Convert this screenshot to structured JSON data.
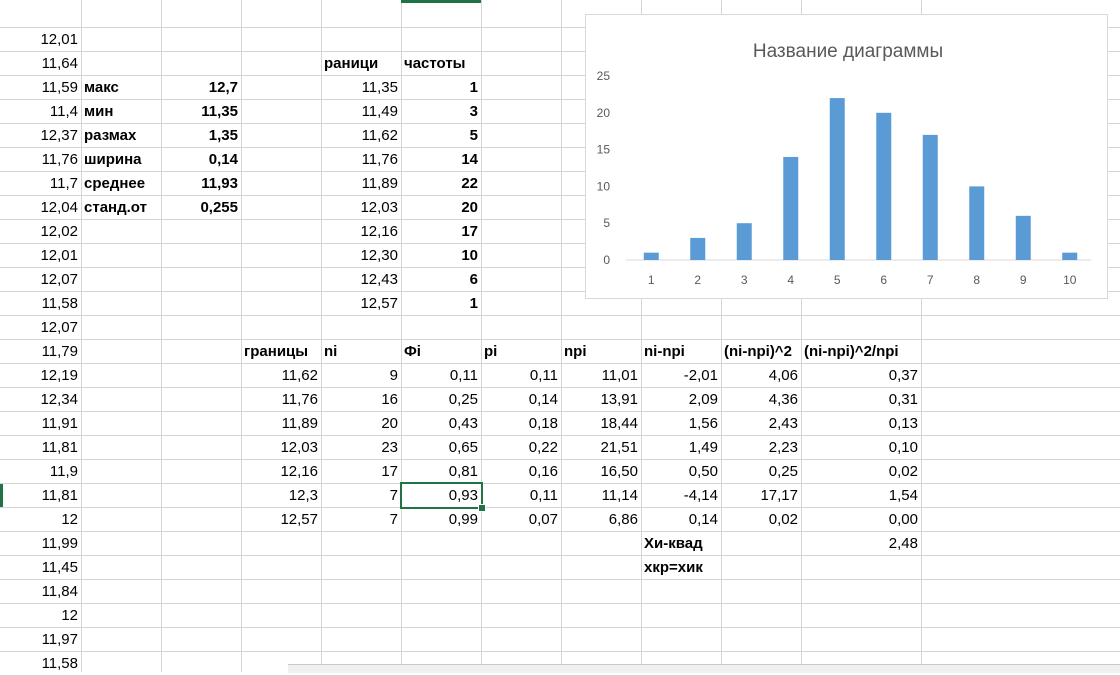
{
  "column_a": [
    "12,01",
    "11,64",
    "11,59",
    "11,4",
    "12,37",
    "11,76",
    "11,7",
    "12,04",
    "12,02",
    "12,01",
    "12,07",
    "11,58",
    "12,07",
    "11,79",
    "12,19",
    "12,34",
    "11,91",
    "11,81",
    "11,9",
    "11,81",
    "12",
    "11,99",
    "11,45",
    "11,84",
    "12",
    "11,97",
    "11,58"
  ],
  "stats": {
    "labels": [
      "макс",
      "мин",
      "размах",
      "ширина",
      "среднее",
      "станд.от"
    ],
    "values": [
      "12,7",
      "11,35",
      "1,35",
      "0,14",
      "11,93",
      "0,255"
    ]
  },
  "freq": {
    "header_bounds": "раници",
    "header_freq": "частоты",
    "bounds": [
      "11,35",
      "11,49",
      "11,62",
      "11,76",
      "11,89",
      "12,03",
      "12,16",
      "12,30",
      "12,43",
      "12,57"
    ],
    "counts": [
      "1",
      "3",
      "5",
      "14",
      "22",
      "20",
      "17",
      "10",
      "6",
      "1"
    ]
  },
  "chi_table": {
    "headers": [
      "границы",
      "ni",
      "Фi",
      "pi",
      "npi",
      "ni-npi",
      "(ni-npi)^2",
      "(ni-npi)^2/npi"
    ],
    "rows": [
      [
        "11,62",
        "9",
        "0,11",
        "0,11",
        "11,01",
        "-2,01",
        "4,06",
        "0,37"
      ],
      [
        "11,76",
        "16",
        "0,25",
        "0,14",
        "13,91",
        "2,09",
        "4,36",
        "0,31"
      ],
      [
        "11,89",
        "20",
        "0,43",
        "0,18",
        "18,44",
        "1,56",
        "2,43",
        "0,13"
      ],
      [
        "12,03",
        "23",
        "0,65",
        "0,22",
        "21,51",
        "1,49",
        "2,23",
        "0,10"
      ],
      [
        "12,16",
        "17",
        "0,81",
        "0,16",
        "16,50",
        "0,50",
        "0,25",
        "0,02"
      ],
      [
        "12,3",
        "7",
        "0,93",
        "0,11",
        "11,14",
        "-4,14",
        "17,17",
        "1,54"
      ],
      [
        "12,57",
        "7",
        "0,99",
        "0,07",
        "6,86",
        "0,14",
        "0,02",
        "0,00"
      ]
    ],
    "chi_label": "Хи-квад",
    "chi_value": "2,48",
    "crit_label": "хкр=хик"
  },
  "chart_data": {
    "type": "bar",
    "title": "Название диаграммы",
    "categories": [
      "1",
      "2",
      "3",
      "4",
      "5",
      "6",
      "7",
      "8",
      "9",
      "10"
    ],
    "values": [
      1,
      3,
      5,
      14,
      22,
      20,
      17,
      10,
      6,
      1
    ],
    "ylim": [
      0,
      25
    ],
    "yticks": [
      0,
      5,
      10,
      15,
      20,
      25
    ],
    "grid": false,
    "legend": "none",
    "color": "#5b9bd5"
  }
}
